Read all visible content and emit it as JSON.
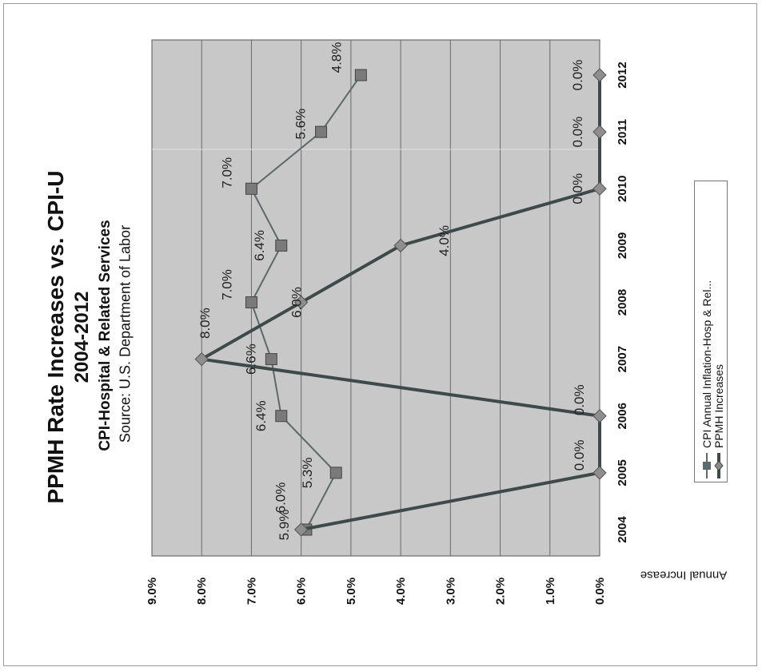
{
  "chart_data": {
    "type": "line",
    "title": "PPMH Rate Increases vs. CPI-U",
    "subtitle": "2004-2012",
    "subtitle2": "CPI-Hospital & Related Services",
    "source": "Source: U.S. Department of Labor",
    "ylabel": "Annual Increase",
    "xlabel": "",
    "categories": [
      "2004",
      "2005",
      "2006",
      "2007",
      "2008",
      "2009",
      "2010",
      "2011",
      "2012"
    ],
    "y_ticks": [
      "0.0%",
      "1.0%",
      "2.0%",
      "3.0%",
      "4.0%",
      "5.0%",
      "6.0%",
      "7.0%",
      "8.0%",
      "9.0%"
    ],
    "ylim": [
      0,
      9
    ],
    "grid": true,
    "legend_position": "right",
    "series": [
      {
        "name": "CPI Annual Inflation-Hosp & Rel...",
        "marker": "square",
        "color": "#5a6a6a",
        "values": [
          5.9,
          5.3,
          6.4,
          6.6,
          7.0,
          6.4,
          7.0,
          5.6,
          4.8
        ],
        "labels": [
          "5.9%",
          "5.3%",
          "6.4%",
          "6.6%",
          "7.0%",
          "6.4%",
          "7.0%",
          "5.6%",
          "4.8%"
        ]
      },
      {
        "name": "PPMH Increases",
        "marker": "diamond",
        "color": "#3e4a4a",
        "values": [
          6.0,
          0.0,
          0.0,
          8.0,
          6.0,
          4.0,
          0.0,
          0.0,
          0.0
        ],
        "labels": [
          "6.0%",
          "0.0%",
          "0.0%",
          "8.0%",
          "6.0%",
          "4.0%",
          "0.0%",
          "0.0%",
          "0.0%"
        ]
      }
    ]
  }
}
